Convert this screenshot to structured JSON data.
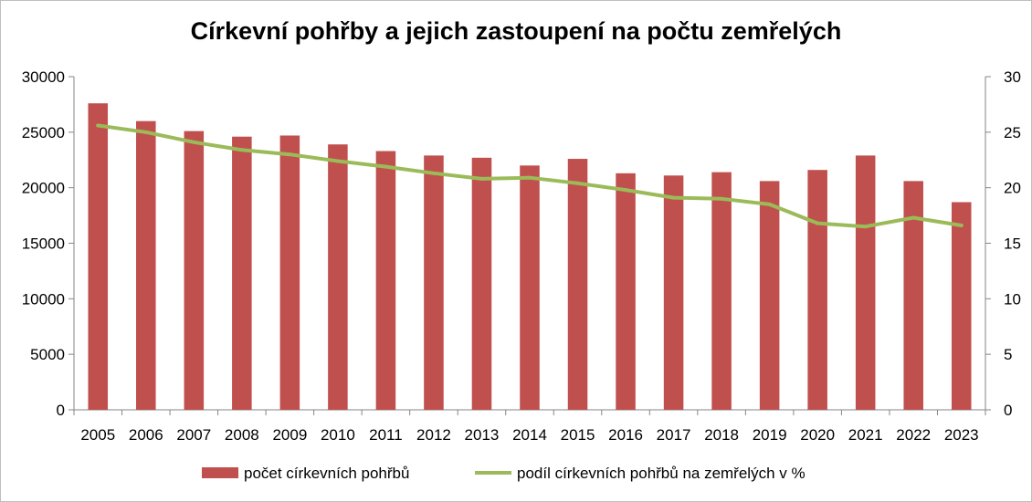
{
  "chart_data": {
    "type": "bar+line",
    "title": "Církevní pohřby a jejich zastoupení na počtu zemřelých",
    "categories": [
      "2005",
      "2006",
      "2007",
      "2008",
      "2009",
      "2010",
      "2011",
      "2012",
      "2013",
      "2014",
      "2015",
      "2016",
      "2017",
      "2018",
      "2019",
      "2020",
      "2021",
      "2022",
      "2023"
    ],
    "series": [
      {
        "name": "počet církevních pohřbů",
        "type": "bar",
        "axis": "left",
        "color": "#c0504d",
        "values": [
          27600,
          26000,
          25100,
          24600,
          24700,
          23900,
          23300,
          22900,
          22700,
          22000,
          22600,
          21300,
          21100,
          21400,
          20600,
          21600,
          22900,
          20600,
          18700
        ]
      },
      {
        "name": "podíl církevních pohřbů na zemřelých v %",
        "type": "line",
        "axis": "right",
        "color": "#9bbb59",
        "values": [
          25.6,
          25.0,
          24.1,
          23.4,
          23.0,
          22.4,
          21.9,
          21.3,
          20.8,
          20.9,
          20.4,
          19.8,
          19.1,
          19.0,
          18.5,
          16.8,
          16.5,
          17.3,
          16.6
        ]
      }
    ],
    "y_left": {
      "min": 0,
      "max": 30000,
      "ticks": [
        0,
        5000,
        10000,
        15000,
        20000,
        25000,
        30000
      ]
    },
    "y_right": {
      "min": 0,
      "max": 30,
      "ticks": [
        0,
        5,
        10,
        15,
        20,
        25,
        30
      ]
    },
    "grid": false,
    "legend": "bottom"
  }
}
